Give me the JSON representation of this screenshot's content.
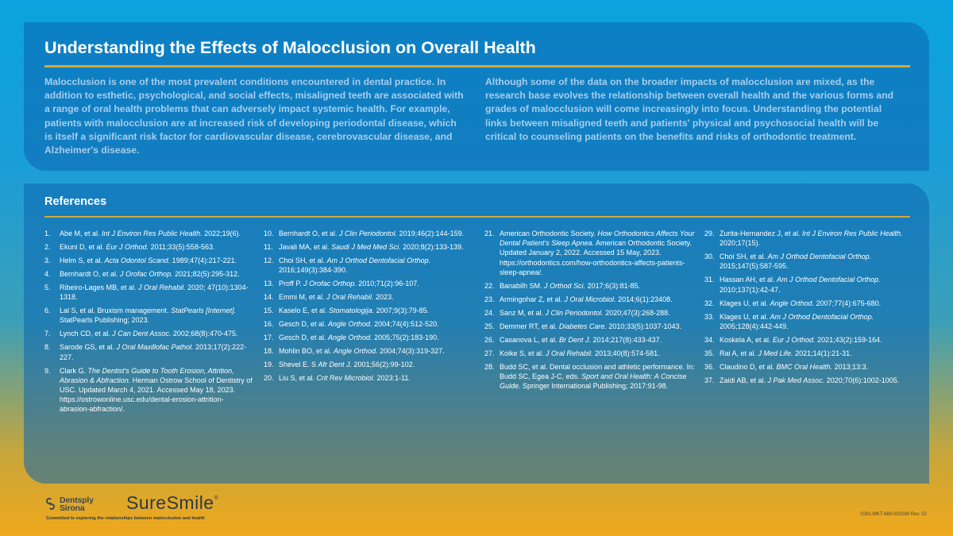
{
  "title": "Understanding the Effects of  Malocclusion on Overall Health",
  "intro_left": "Malocclusion is one of the most prevalent conditions encountered in dental practice. In addition to esthetic, psychological, and social effects, misaligned teeth are associated with a range of oral health problems that can adversely impact systemic health. For example, patients with malocclusion are at increased risk of developing periodontal disease, which is itself a significant risk factor for cardiovascular disease, cerebrovascular disease, and Alzheimer's disease.",
  "intro_right": "Although some of the data on the broader impacts of malocclusion are mixed, as the research base evolves the relationship between overall health and the various forms and grades of malocclusion will come increasingly into focus. Understanding the potential links between misaligned teeth and patients' physical and psychosocial health will be critical to counseling patients on the benefits and risks of orthodontic treatment.",
  "references_heading": "References",
  "references": [
    {
      "num": "1.",
      "pre": "Abe M, et al. ",
      "journal": "Int J Environ Res Public Health.",
      "post": " 2022;19(6)."
    },
    {
      "num": "2.",
      "pre": "Ekuni D, et al. ",
      "journal": "Eur J Orthod.",
      "post": " 2011;33(5):558-563."
    },
    {
      "num": "3.",
      "pre": "Helm S, et al. ",
      "journal": "Acta Odontol Scand.",
      "post": " 1989;47(4):217-221."
    },
    {
      "num": "4.",
      "pre": "Bernhardt O, et al. ",
      "journal": "J Orofac Orthop.",
      "post": " 2021;82(5):295-312."
    },
    {
      "num": "5.",
      "pre": "Ribeiro-Lages MB, et al. ",
      "journal": "J Oral Rehabil.",
      "post": " 2020; 47(10):1304-1318."
    },
    {
      "num": "6.",
      "pre": "Lal S, et al. Bruxism management. ",
      "journal": "StatPearls [Internet].",
      "post": " StatPearls Publishing; 2023."
    },
    {
      "num": "7.",
      "pre": "Lynch CD, et al. ",
      "journal": "J Can Dent Assoc.",
      "post": " 2002;68(8):470-475."
    },
    {
      "num": "8.",
      "pre": "Sarode GS, et al. ",
      "journal": "J Oral Maxillofac Pathol.",
      "post": " 2013;17(2):222-227."
    },
    {
      "num": "9.",
      "pre": "Clark G. ",
      "journal": "The Dentist's Guide to Tooth Erosion, Attrition, Abrasion & Abfraction.",
      "post": " Herman Ostrow School of Dentistry of USC. Updated March 4, 2021. Accessed May 18, 2023. https://ostrowonline.usc.edu/dental-erosion-attrition-abrasion-abfraction/."
    },
    {
      "num": "10.",
      "pre": "Bernhardt O, et al. ",
      "journal": "J Clin Periodontol.",
      "post": " 2019;46(2):144-159."
    },
    {
      "num": "11.",
      "pre": "Javali MA, et al. ",
      "journal": "Saudi J Med Med Sci.",
      "post": " 2020;8(2):133-139."
    },
    {
      "num": "12.",
      "pre": "Choi SH, et al. ",
      "journal": "Am J Orthod Dentofacial Orthop.",
      "post": " 2016;149(3):384-390."
    },
    {
      "num": "13.",
      "pre": "Proff P. ",
      "journal": "J Orofac Orthop.",
      "post": " 2010;71(2):96-107."
    },
    {
      "num": "14.",
      "pre": "Emmi M, et al. ",
      "journal": "J Oral Rehabil.",
      "post": " 2023."
    },
    {
      "num": "15.",
      "pre": "Kaselo E, et al. ",
      "journal": "Stomatologija.",
      "post": " 2007;9(3):79-85."
    },
    {
      "num": "16.",
      "pre": "Gesch D, et al. ",
      "journal": "Angle Orthod.",
      "post": " 2004;74(4):512-520."
    },
    {
      "num": "17.",
      "pre": "Gesch D, et al. ",
      "journal": "Angle Orthod.",
      "post": " 2005;75(2):183-190."
    },
    {
      "num": "18.",
      "pre": "Mohlin BO, et al. ",
      "journal": "Angle Orthod.",
      "post": " 2004;74(3):319-327."
    },
    {
      "num": "19.",
      "pre": "Shevel E. S ",
      "journal": "Afr Dent J.",
      "post": " 2001;56(2):99-102."
    },
    {
      "num": "20.",
      "pre": " Liu S, et al. ",
      "journal": "Crit Rev Microbiol.",
      "post": " 2023:1-11."
    },
    {
      "num": "21.",
      "pre": "American Orthodontic Society. ",
      "journal": "How Orthodontics Affects Your Dental Patient's Sleep Apnea.",
      "post": " American Orthodontic Society. Updated January 2, 2022. Accessed 15 May, 2023. https://orthodontics.com/how-orthodontics-affects-patients-sleep-apnea/."
    },
    {
      "num": "22.",
      "pre": "Banabilh SM. ",
      "journal": "J Orthod Sci.",
      "post": " 2017;6(3):81-85."
    },
    {
      "num": "23.",
      "pre": "Armingohar Z, et al. ",
      "journal": "J Oral Microbiol.",
      "post": " 2014;6(1):23408."
    },
    {
      "num": "24.",
      "pre": "Sanz M, et al. ",
      "journal": "J Clin Periodontol.",
      "post": " 2020;47(3):268-288."
    },
    {
      "num": "25.",
      "pre": "Demmer RT, et al. ",
      "journal": "Diabetes Care.",
      "post": " 2010;33(5):1037-1043."
    },
    {
      "num": "26.",
      "pre": "Casanova L, et al. ",
      "journal": "Br Dent J.",
      "post": " 2014;217(8):433-437."
    },
    {
      "num": "27.",
      "pre": "Koike S, et al. ",
      "journal": "J Oral Rehabil.",
      "post": " 2013;40(8):574-581."
    },
    {
      "num": "28.",
      "pre": "Budd SC, et al. Dental occlusion and athletic performance. In: Budd SC, Egea J-C, eds. ",
      "journal": "Sport and Oral Health: A Concise Guide.",
      "post": " Springer International Publishing; 2017:91-98."
    },
    {
      "num": "29.",
      "pre": "Zurita-Hernandez J, et al. ",
      "journal": "Int J Environ Res Public Health.",
      "post": " 2020;17(15)."
    },
    {
      "num": "30.",
      "pre": "Choi SH, et al. ",
      "journal": "Am J Orthod Dentofacial Orthop.",
      "post": " 2015;147(5):587-595."
    },
    {
      "num": "31.",
      "pre": "Hassan AH, et al. ",
      "journal": "Am J Orthod Dentofacial Orthop.",
      "post": " 2010;137(1):42-47."
    },
    {
      "num": "32.",
      "pre": "Klages U, et al. ",
      "journal": "Angle Orthod.",
      "post": " 2007;77(4):675-680."
    },
    {
      "num": "33.",
      "pre": "Klages U, et al. ",
      "journal": "Am J Orthod Dentofacial Orthop.",
      "post": " 2005;128(4):442-449."
    },
    {
      "num": "34.",
      "pre": "Koskela A, et al. ",
      "journal": "Eur J Orthod.",
      "post": " 2021;43(2):159-164."
    },
    {
      "num": "35.",
      "pre": "Rai A, et al. ",
      "journal": "J Med Life.",
      "post": " 2021;14(1):21-31."
    },
    {
      "num": "36.",
      "pre": "Claudino D, et al. ",
      "journal": "BMC Oral Health.",
      "post": " 2013;13:3."
    },
    {
      "num": "37.",
      "pre": "Zaidi AB, et al. ",
      "journal": "J Pak Med Assoc.",
      "post": " 2020;70(6):1002-1005."
    }
  ],
  "footer": {
    "dentsply_line1": "Dentsply",
    "dentsply_line2": "Sirona",
    "brand": "SureSmile",
    "brand_mark": "®",
    "tagline": "Committed to exploring the relationships between malocclusion and health",
    "doc_number": "0281-MKT-MM-000289  Rev. 02"
  },
  "colors": {
    "panel": "#0c64af",
    "rule": "#d4a93a",
    "intro_text": "#a6cdec"
  }
}
